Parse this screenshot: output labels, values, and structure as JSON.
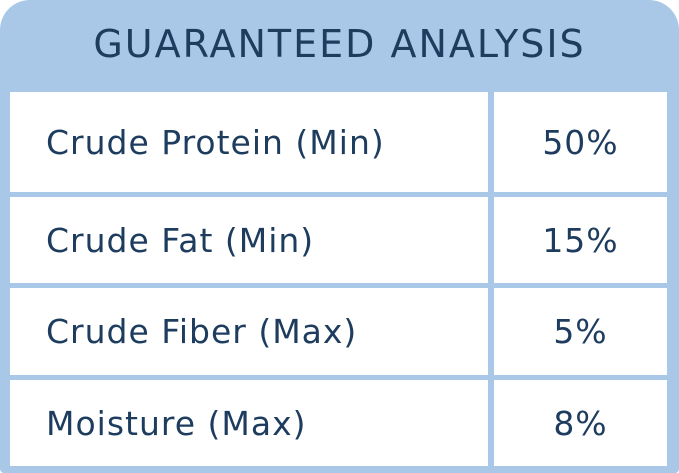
{
  "header": {
    "title": "GUARANTEED ANALYSIS"
  },
  "table": {
    "rows": [
      [
        "Crude Protein (Min)",
        "50%"
      ],
      [
        "Crude Fat (Min)",
        "15%"
      ],
      [
        "Crude Fiber (Max)",
        "5%"
      ],
      [
        "Moisture (Max)",
        "8%"
      ]
    ]
  }
}
